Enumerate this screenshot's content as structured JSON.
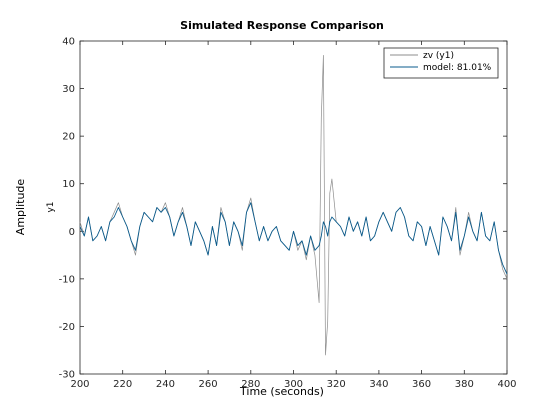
{
  "chart_data": {
    "type": "line",
    "title": "Simulated Response Comparison",
    "xlabel": "Time (seconds)",
    "ylabel": "Amplitude",
    "channel_label": "y1",
    "xlim": [
      200,
      400
    ],
    "ylim": [
      -30,
      40
    ],
    "xticks": [
      200,
      220,
      240,
      260,
      280,
      300,
      320,
      340,
      360,
      380,
      400
    ],
    "yticks": [
      -30,
      -20,
      -10,
      0,
      10,
      20,
      30,
      40
    ],
    "grid": false,
    "legend_position": "top-right",
    "x": [
      200,
      202,
      204,
      206,
      208,
      210,
      212,
      214,
      216,
      218,
      220,
      222,
      224,
      226,
      228,
      230,
      232,
      234,
      236,
      238,
      240,
      242,
      244,
      246,
      248,
      250,
      252,
      254,
      256,
      258,
      260,
      262,
      264,
      266,
      268,
      270,
      272,
      274,
      276,
      278,
      280,
      282,
      284,
      286,
      288,
      290,
      292,
      294,
      296,
      298,
      300,
      302,
      304,
      306,
      308,
      310,
      312,
      313,
      314,
      315,
      316,
      317,
      318,
      320,
      322,
      324,
      326,
      328,
      330,
      332,
      334,
      336,
      338,
      340,
      342,
      344,
      346,
      348,
      350,
      352,
      354,
      356,
      358,
      360,
      362,
      364,
      366,
      368,
      370,
      372,
      374,
      376,
      378,
      380,
      382,
      384,
      386,
      388,
      390,
      392,
      394,
      396,
      398,
      400
    ],
    "series": [
      {
        "name": "zv (y1)",
        "color": "#8c8c8c",
        "values": [
          2,
          -1,
          3,
          -2,
          -1,
          1,
          -2,
          2,
          4,
          6,
          3,
          1,
          -2,
          -5,
          1,
          4,
          3,
          2,
          5,
          4,
          6,
          3,
          -1,
          2,
          5,
          1,
          -3,
          2,
          0,
          -2,
          -5,
          1,
          -3,
          5,
          2,
          -3,
          2,
          0,
          -4,
          4,
          7,
          2,
          -2,
          1,
          -2,
          0,
          1,
          -2,
          -3,
          -4,
          0,
          -4,
          -2,
          -6,
          -1,
          -5,
          -15,
          24,
          37,
          -26,
          -19,
          8,
          11,
          2,
          1,
          -1,
          3,
          0,
          2,
          -1,
          3,
          -2,
          -1,
          2,
          4,
          2,
          0,
          4,
          5,
          3,
          -1,
          -2,
          2,
          1,
          -3,
          1,
          -2,
          -5,
          3,
          1,
          -2,
          5,
          -5,
          -1,
          4,
          0,
          -2,
          4,
          -1,
          -2,
          2,
          -4,
          -8,
          -10
        ]
      },
      {
        "name": "model: 81.01%",
        "color": "#0a5b8c",
        "values": [
          1,
          -1,
          3,
          -2,
          -1,
          1,
          -2,
          2,
          3,
          5,
          3,
          1,
          -2,
          -4,
          1,
          4,
          3,
          2,
          5,
          4,
          5,
          3,
          -1,
          2,
          4,
          1,
          -3,
          2,
          0,
          -2,
          -5,
          1,
          -3,
          4,
          2,
          -3,
          2,
          0,
          -3,
          4,
          6,
          2,
          -2,
          1,
          -2,
          0,
          1,
          -2,
          -3,
          -4,
          0,
          -3,
          -2,
          -5,
          -1,
          -4,
          -3,
          -1,
          2,
          1,
          -1,
          2,
          3,
          2,
          1,
          -1,
          3,
          0,
          2,
          -1,
          3,
          -2,
          -1,
          2,
          4,
          2,
          0,
          4,
          5,
          3,
          -1,
          -2,
          2,
          1,
          -3,
          1,
          -2,
          -5,
          3,
          1,
          -2,
          4,
          -4,
          -1,
          3,
          0,
          -2,
          4,
          -1,
          -2,
          2,
          -4,
          -7,
          -9
        ]
      }
    ]
  }
}
